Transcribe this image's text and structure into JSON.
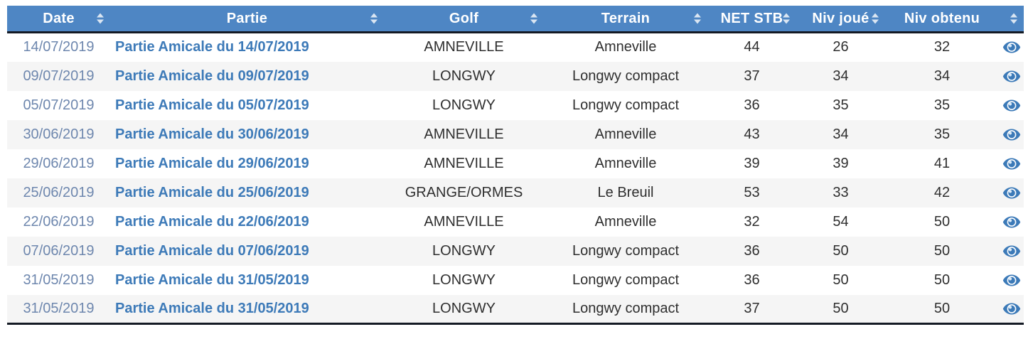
{
  "table": {
    "columns": [
      {
        "key": "date",
        "label": "Date",
        "sortable": true,
        "align": "center"
      },
      {
        "key": "partie",
        "label": "Partie",
        "sortable": true,
        "align": "center"
      },
      {
        "key": "golf",
        "label": "Golf",
        "sortable": true,
        "align": "center"
      },
      {
        "key": "terrain",
        "label": "Terrain",
        "sortable": true,
        "align": "center"
      },
      {
        "key": "net_stb",
        "label": "NET STB",
        "sortable": true,
        "align": "center"
      },
      {
        "key": "niv_joue",
        "label": "Niv joué",
        "sortable": true,
        "align": "center"
      },
      {
        "key": "niv_obtenu",
        "label": "Niv obtenu",
        "sortable": false,
        "align": "center"
      },
      {
        "key": "view",
        "label": "",
        "sortable": true,
        "align": "center"
      }
    ],
    "rows": [
      {
        "date": "14/07/2019",
        "partie": "Partie Amicale du 14/07/2019",
        "golf": "AMNEVILLE",
        "terrain": "Amneville",
        "net_stb": "44",
        "niv_joue": "26",
        "niv_obtenu": "32"
      },
      {
        "date": "09/07/2019",
        "partie": "Partie Amicale du 09/07/2019",
        "golf": "LONGWY",
        "terrain": "Longwy compact",
        "net_stb": "37",
        "niv_joue": "34",
        "niv_obtenu": "34"
      },
      {
        "date": "05/07/2019",
        "partie": "Partie Amicale du 05/07/2019",
        "golf": "LONGWY",
        "terrain": "Longwy compact",
        "net_stb": "36",
        "niv_joue": "35",
        "niv_obtenu": "35"
      },
      {
        "date": "30/06/2019",
        "partie": "Partie Amicale du 30/06/2019",
        "golf": "AMNEVILLE",
        "terrain": "Amneville",
        "net_stb": "43",
        "niv_joue": "34",
        "niv_obtenu": "35"
      },
      {
        "date": "29/06/2019",
        "partie": "Partie Amicale du 29/06/2019",
        "golf": "AMNEVILLE",
        "terrain": "Amneville",
        "net_stb": "39",
        "niv_joue": "39",
        "niv_obtenu": "41"
      },
      {
        "date": "25/06/2019",
        "partie": "Partie Amicale du 25/06/2019",
        "golf": "GRANGE/ORMES",
        "terrain": "Le Breuil",
        "net_stb": "53",
        "niv_joue": "33",
        "niv_obtenu": "42"
      },
      {
        "date": "22/06/2019",
        "partie": "Partie Amicale du 22/06/2019",
        "golf": "AMNEVILLE",
        "terrain": "Amneville",
        "net_stb": "32",
        "niv_joue": "54",
        "niv_obtenu": "50"
      },
      {
        "date": "07/06/2019",
        "partie": "Partie Amicale du 07/06/2019",
        "golf": "LONGWY",
        "terrain": "Longwy compact",
        "net_stb": "36",
        "niv_joue": "50",
        "niv_obtenu": "50"
      },
      {
        "date": "31/05/2019",
        "partie": "Partie Amicale du 31/05/2019",
        "golf": "LONGWY",
        "terrain": "Longwy compact",
        "net_stb": "36",
        "niv_joue": "50",
        "niv_obtenu": "50"
      },
      {
        "date": "31/05/2019",
        "partie": "Partie Amicale du 31/05/2019",
        "golf": "LONGWY",
        "terrain": "Longwy compact",
        "net_stb": "37",
        "niv_joue": "50",
        "niv_obtenu": "50"
      }
    ],
    "icons": {
      "row_action": "eye-icon",
      "header_sort": "sort-arrows-icon"
    },
    "colors": {
      "header_bg": "#4e86c4",
      "header_text": "#ffffff",
      "row_alt_bg": "#f5f5f5",
      "row_bg": "#ffffff",
      "date_text": "#6e87ae",
      "partie_link": "#3d7ab8",
      "cell_text": "#2f2f2f",
      "dark_border": "#141a24",
      "sort_arrow": "#dbe6f2",
      "eye_icon": "#3c7ab8"
    }
  }
}
